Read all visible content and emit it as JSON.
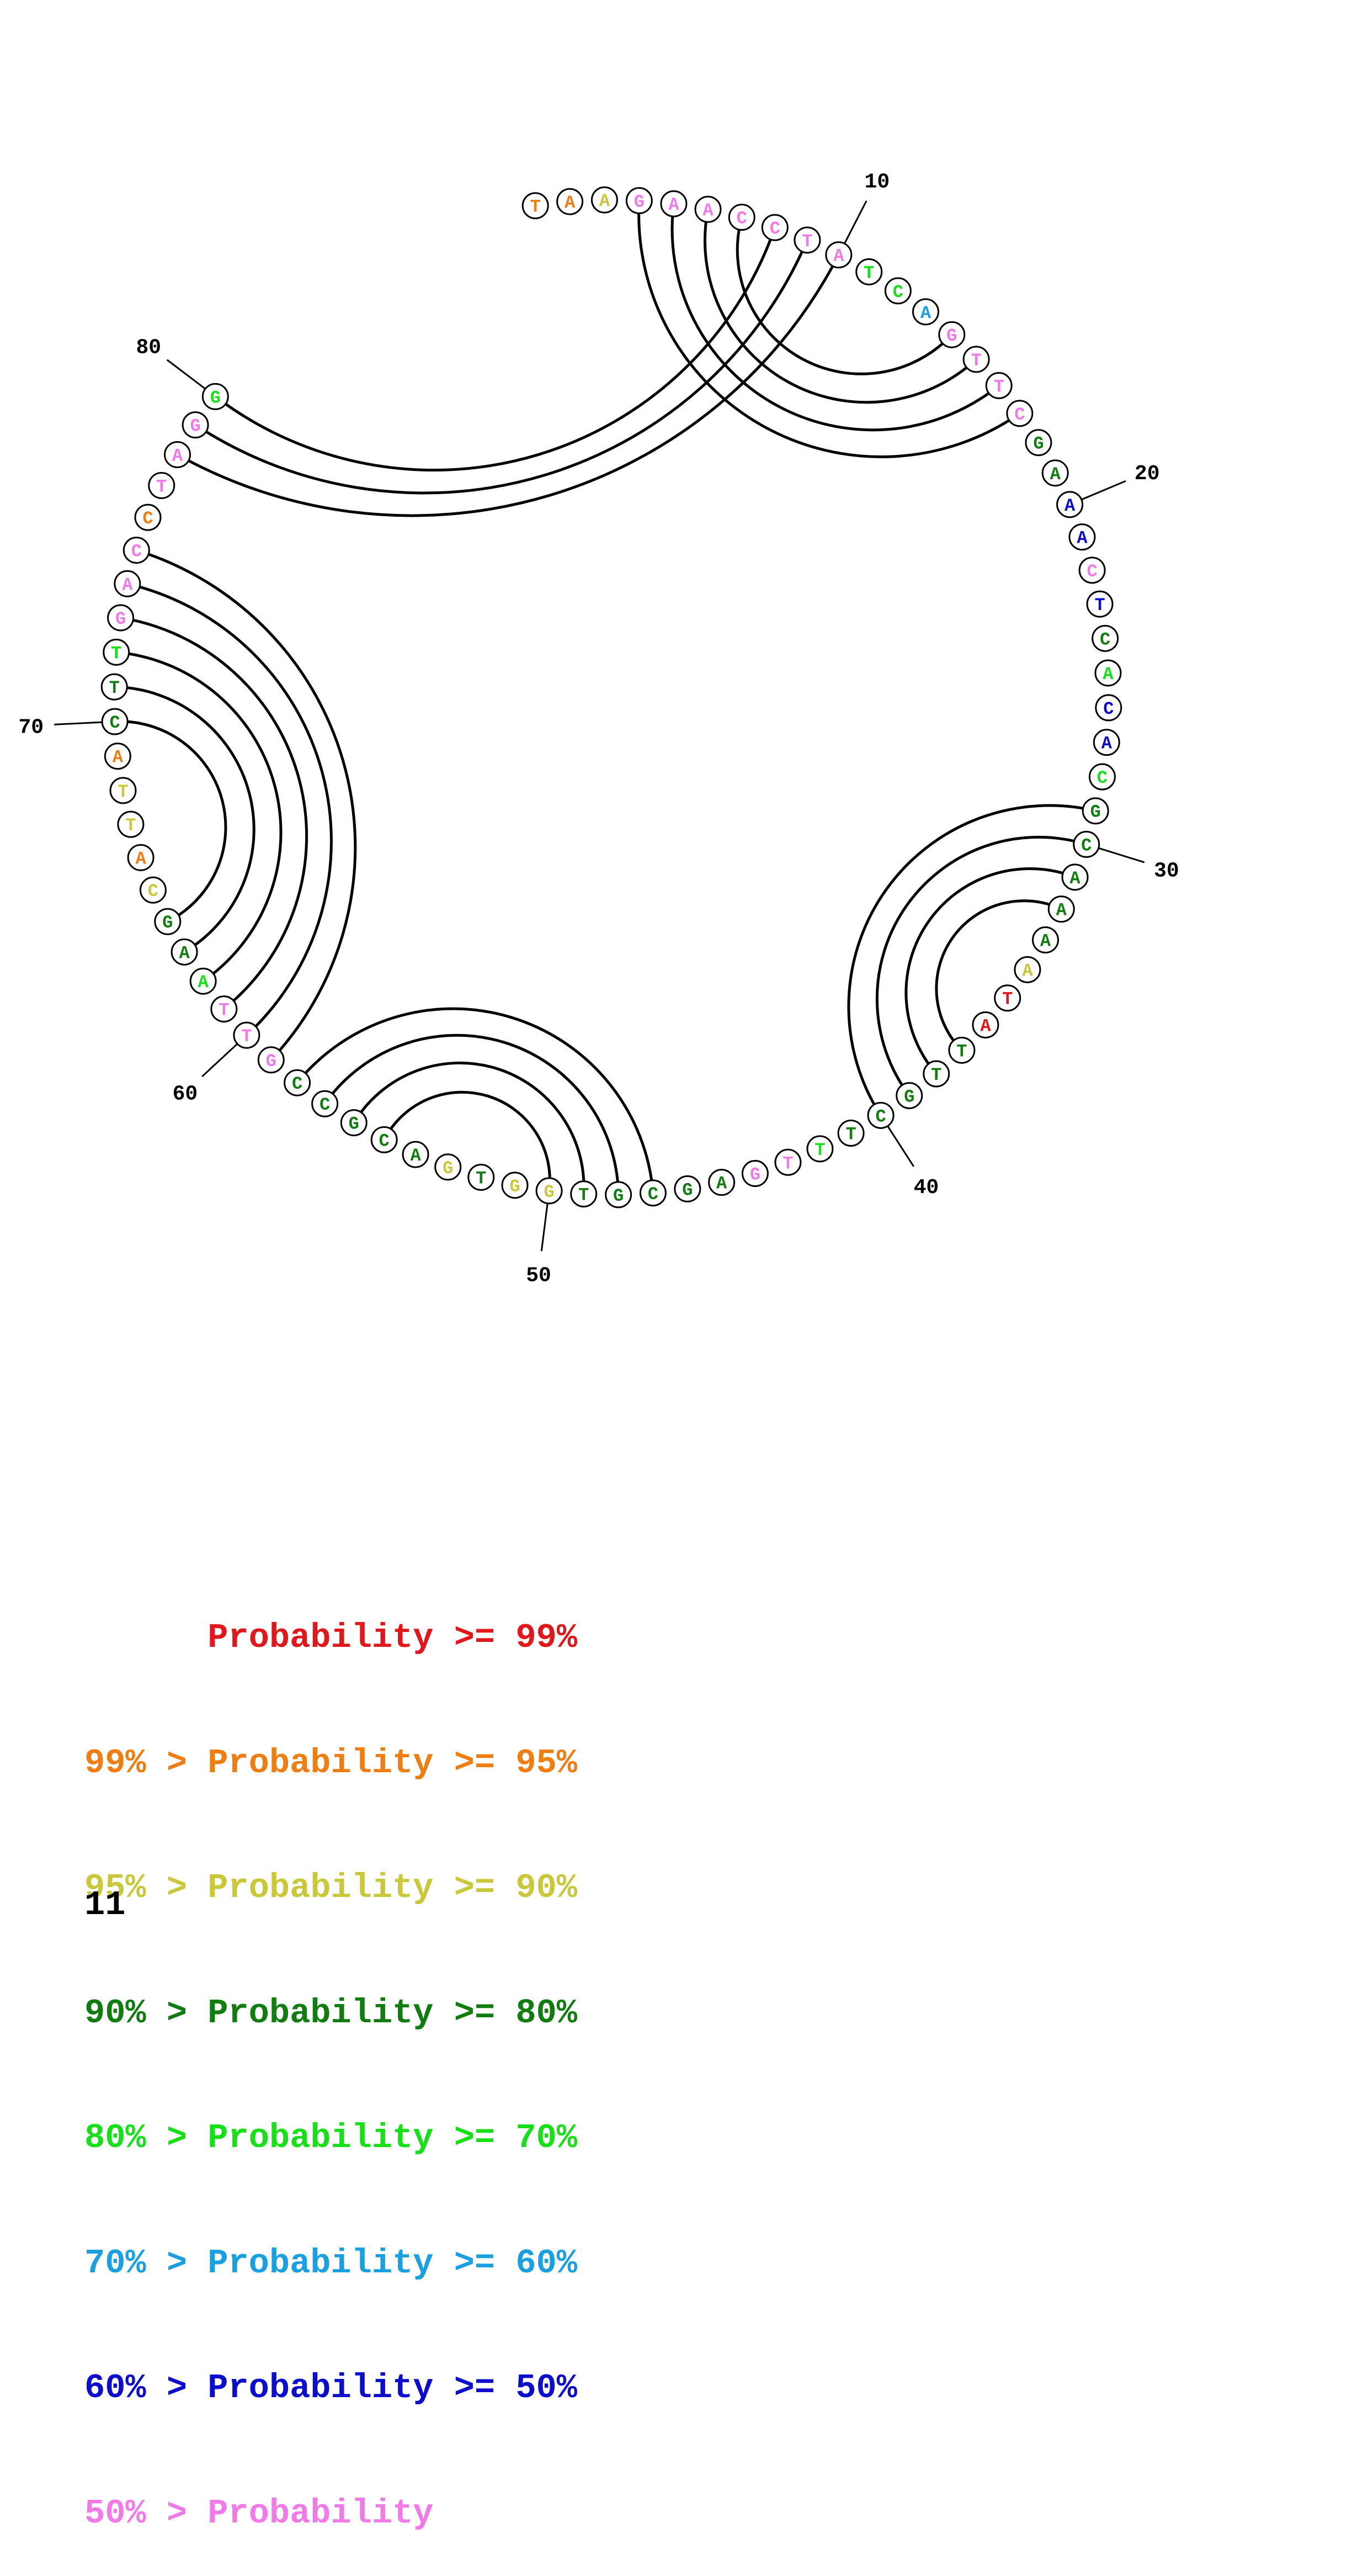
{
  "colors": {
    "c99": "#e0181c",
    "c95": "#ee7d12",
    "c90": "#c9c83a",
    "c80": "#117d11",
    "c70": "#18e018",
    "c60": "#1aa0e0",
    "c50": "#0d0dcc",
    "c0": "#f07ae8"
  },
  "diagram": {
    "bases": [
      {
        "n": 1,
        "b": "T",
        "p": "c95"
      },
      {
        "n": 2,
        "b": "A",
        "p": "c95"
      },
      {
        "n": 3,
        "b": "A",
        "p": "c90"
      },
      {
        "n": 4,
        "b": "G",
        "p": "c0"
      },
      {
        "n": 5,
        "b": "A",
        "p": "c0"
      },
      {
        "n": 6,
        "b": "A",
        "p": "c0"
      },
      {
        "n": 7,
        "b": "C",
        "p": "c0"
      },
      {
        "n": 8,
        "b": "C",
        "p": "c0"
      },
      {
        "n": 9,
        "b": "T",
        "p": "c0"
      },
      {
        "n": 10,
        "b": "A",
        "p": "c0"
      },
      {
        "n": 11,
        "b": "T",
        "p": "c70"
      },
      {
        "n": 12,
        "b": "C",
        "p": "c70"
      },
      {
        "n": 13,
        "b": "A",
        "p": "c60"
      },
      {
        "n": 14,
        "b": "G",
        "p": "c0"
      },
      {
        "n": 15,
        "b": "T",
        "p": "c0"
      },
      {
        "n": 16,
        "b": "T",
        "p": "c0"
      },
      {
        "n": 17,
        "b": "C",
        "p": "c0"
      },
      {
        "n": 18,
        "b": "G",
        "p": "c80"
      },
      {
        "n": 19,
        "b": "A",
        "p": "c80"
      },
      {
        "n": 20,
        "b": "A",
        "p": "c50"
      },
      {
        "n": 21,
        "b": "A",
        "p": "c50"
      },
      {
        "n": 22,
        "b": "C",
        "p": "c0"
      },
      {
        "n": 23,
        "b": "T",
        "p": "c50"
      },
      {
        "n": 24,
        "b": "C",
        "p": "c80"
      },
      {
        "n": 25,
        "b": "A",
        "p": "c70"
      },
      {
        "n": 26,
        "b": "C",
        "p": "c50"
      },
      {
        "n": 27,
        "b": "A",
        "p": "c50"
      },
      {
        "n": 28,
        "b": "C",
        "p": "c70"
      },
      {
        "n": 29,
        "b": "G",
        "p": "c80"
      },
      {
        "n": 30,
        "b": "C",
        "p": "c80"
      },
      {
        "n": 31,
        "b": "A",
        "p": "c80"
      },
      {
        "n": 32,
        "b": "A",
        "p": "c80"
      },
      {
        "n": 33,
        "b": "A",
        "p": "c80"
      },
      {
        "n": 34,
        "b": "A",
        "p": "c90"
      },
      {
        "n": 35,
        "b": "T",
        "p": "c99"
      },
      {
        "n": 36,
        "b": "A",
        "p": "c99"
      },
      {
        "n": 37,
        "b": "T",
        "p": "c80"
      },
      {
        "n": 38,
        "b": "T",
        "p": "c80"
      },
      {
        "n": 39,
        "b": "G",
        "p": "c80"
      },
      {
        "n": 40,
        "b": "C",
        "p": "c80"
      },
      {
        "n": 41,
        "b": "T",
        "p": "c80"
      },
      {
        "n": 42,
        "b": "T",
        "p": "c70"
      },
      {
        "n": 43,
        "b": "T",
        "p": "c0"
      },
      {
        "n": 44,
        "b": "G",
        "p": "c0"
      },
      {
        "n": 45,
        "b": "A",
        "p": "c80"
      },
      {
        "n": 46,
        "b": "G",
        "p": "c80"
      },
      {
        "n": 47,
        "b": "C",
        "p": "c80"
      },
      {
        "n": 48,
        "b": "G",
        "p": "c80"
      },
      {
        "n": 49,
        "b": "T",
        "p": "c80"
      },
      {
        "n": 50,
        "b": "G",
        "p": "c90"
      },
      {
        "n": 51,
        "b": "G",
        "p": "c90"
      },
      {
        "n": 52,
        "b": "T",
        "p": "c80"
      },
      {
        "n": 53,
        "b": "G",
        "p": "c90"
      },
      {
        "n": 54,
        "b": "A",
        "p": "c80"
      },
      {
        "n": 55,
        "b": "C",
        "p": "c80"
      },
      {
        "n": 56,
        "b": "G",
        "p": "c80"
      },
      {
        "n": 57,
        "b": "C",
        "p": "c80"
      },
      {
        "n": 58,
        "b": "C",
        "p": "c80"
      },
      {
        "n": 59,
        "b": "G",
        "p": "c0"
      },
      {
        "n": 60,
        "b": "T",
        "p": "c0"
      },
      {
        "n": 61,
        "b": "T",
        "p": "c0"
      },
      {
        "n": 62,
        "b": "A",
        "p": "c70"
      },
      {
        "n": 63,
        "b": "A",
        "p": "c80"
      },
      {
        "n": 64,
        "b": "G",
        "p": "c80"
      },
      {
        "n": 65,
        "b": "C",
        "p": "c90"
      },
      {
        "n": 66,
        "b": "A",
        "p": "c95"
      },
      {
        "n": 67,
        "b": "T",
        "p": "c90"
      },
      {
        "n": 68,
        "b": "T",
        "p": "c90"
      },
      {
        "n": 69,
        "b": "A",
        "p": "c95"
      },
      {
        "n": 70,
        "b": "C",
        "p": "c80"
      },
      {
        "n": 71,
        "b": "T",
        "p": "c80"
      },
      {
        "n": 72,
        "b": "T",
        "p": "c70"
      },
      {
        "n": 73,
        "b": "G",
        "p": "c0"
      },
      {
        "n": 74,
        "b": "A",
        "p": "c0"
      },
      {
        "n": 75,
        "b": "C",
        "p": "c0"
      },
      {
        "n": 76,
        "b": "C",
        "p": "c95"
      },
      {
        "n": 77,
        "b": "T",
        "p": "c0"
      },
      {
        "n": 78,
        "b": "A",
        "p": "c0"
      },
      {
        "n": 79,
        "b": "G",
        "p": "c0"
      },
      {
        "n": 80,
        "b": "G",
        "p": "c70"
      }
    ],
    "pairs": [
      [
        4,
        17
      ],
      [
        5,
        16
      ],
      [
        6,
        15
      ],
      [
        7,
        14
      ],
      [
        8,
        80
      ],
      [
        9,
        79
      ],
      [
        10,
        78
      ],
      [
        29,
        40
      ],
      [
        30,
        39
      ],
      [
        31,
        38
      ],
      [
        32,
        37
      ],
      [
        47,
        58
      ],
      [
        48,
        57
      ],
      [
        49,
        56
      ],
      [
        50,
        55
      ],
      [
        59,
        75
      ],
      [
        60,
        74
      ],
      [
        61,
        73
      ],
      [
        62,
        72
      ],
      [
        63,
        71
      ],
      [
        64,
        70
      ]
    ],
    "tick_labels": [
      "10",
      "20",
      "30",
      "40",
      "50",
      "60",
      "70",
      "80"
    ]
  },
  "legend": [
    {
      "prefix": "",
      "pct": "",
      "text": "Probability >= 99%",
      "color": "c99"
    },
    {
      "prefix": "99%",
      "text": "Probability >= 95%",
      "color": "c95"
    },
    {
      "prefix": "95%",
      "text": "Probability >= 90%",
      "color": "c90"
    },
    {
      "prefix": "90%",
      "text": "Probability >= 80%",
      "color": "c80"
    },
    {
      "prefix": "80%",
      "text": "Probability >= 70%",
      "color": "c70"
    },
    {
      "prefix": "70%",
      "text": "Probability >= 60%",
      "color": "c60"
    },
    {
      "prefix": "60%",
      "text": "Probability >= 50%",
      "color": "c50"
    },
    {
      "prefix": "50%",
      "text": "Probability",
      "color": "c0"
    }
  ],
  "page_number": "11"
}
